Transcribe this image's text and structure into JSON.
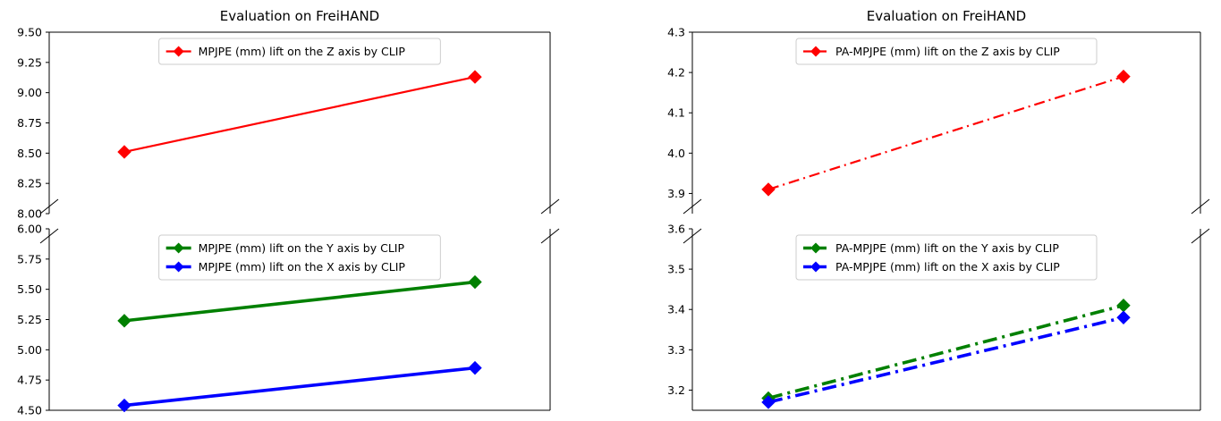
{
  "chart_data": [
    {
      "type": "line",
      "title": "Evaluation on FreiHAND",
      "broken_y_axis": true,
      "xlabel": "",
      "ylabel": "",
      "grid": false,
      "x": [
        0,
        1
      ],
      "upper": {
        "ylim": [
          8.0,
          9.5
        ],
        "yticks": [
          "8.00",
          "8.25",
          "8.50",
          "8.75",
          "9.00",
          "9.25",
          "9.50"
        ],
        "legend_position": "upper-center",
        "series": [
          {
            "name": "MPJPE (mm) lift on the Z axis by CLIP",
            "color": "#ff0000",
            "linestyle": "solid",
            "linewidth": "normal",
            "marker": "diamond",
            "values": [
              8.51,
              9.13
            ]
          }
        ]
      },
      "lower": {
        "ylim": [
          4.5,
          6.0
        ],
        "yticks": [
          "4.50",
          "4.75",
          "5.00",
          "5.25",
          "5.50",
          "5.75",
          "6.00"
        ],
        "legend_position": "upper-center",
        "series": [
          {
            "name": "MPJPE (mm) lift on the Y axis by CLIP",
            "color": "#008000",
            "linestyle": "solid",
            "linewidth": "thick",
            "marker": "diamond",
            "values": [
              5.24,
              5.56
            ]
          },
          {
            "name": "MPJPE (mm) lift on the X axis by CLIP",
            "color": "#0000ff",
            "linestyle": "solid",
            "linewidth": "thick",
            "marker": "diamond",
            "values": [
              4.54,
              4.85
            ]
          }
        ]
      }
    },
    {
      "type": "line",
      "title": "Evaluation on FreiHAND",
      "broken_y_axis": true,
      "xlabel": "",
      "ylabel": "",
      "grid": false,
      "x": [
        0,
        1
      ],
      "upper": {
        "ylim": [
          3.85,
          4.3
        ],
        "yticks": [
          "3.9",
          "4.0",
          "4.1",
          "4.2",
          "4.3"
        ],
        "legend_position": "upper-center",
        "series": [
          {
            "name": "PA-MPJPE (mm) lift on the Z axis by CLIP",
            "color": "#ff0000",
            "linestyle": "dash-dot",
            "linewidth": "normal",
            "marker": "diamond",
            "values": [
              3.91,
              4.19
            ]
          }
        ]
      },
      "lower": {
        "ylim": [
          3.15,
          3.6
        ],
        "yticks": [
          "3.2",
          "3.3",
          "3.4",
          "3.5",
          "3.6"
        ],
        "legend_position": "upper-center",
        "series": [
          {
            "name": "PA-MPJPE (mm) lift on the Y axis by CLIP",
            "color": "#008000",
            "linestyle": "dash-dot",
            "linewidth": "thick",
            "marker": "diamond",
            "values": [
              3.18,
              3.41
            ]
          },
          {
            "name": "PA-MPJPE (mm) lift on the X axis by CLIP",
            "color": "#0000ff",
            "linestyle": "dash-dot",
            "linewidth": "thick",
            "marker": "diamond",
            "values": [
              3.17,
              3.38
            ]
          }
        ]
      }
    }
  ]
}
